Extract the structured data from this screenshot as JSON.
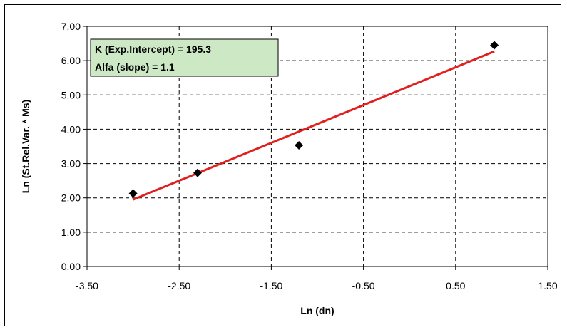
{
  "chart_data": {
    "type": "scatter",
    "xlabel": "Ln (dn)",
    "ylabel": "Ln (St.Rel.Var. * Ms)",
    "xlim": [
      -3.5,
      1.5
    ],
    "ylim": [
      0,
      7
    ],
    "x_ticks": [
      -3.5,
      -2.5,
      -1.5,
      -0.5,
      0.5,
      1.5
    ],
    "x_tick_labels": [
      "-3.50",
      "-2.50",
      "-1.50",
      "-0.50",
      "0.50",
      "1.50"
    ],
    "y_ticks": [
      0,
      1,
      2,
      3,
      4,
      5,
      6,
      7
    ],
    "y_tick_labels": [
      "0.00",
      "1.00",
      "2.00",
      "3.00",
      "4.00",
      "5.00",
      "6.00",
      "7.00"
    ],
    "grid": true,
    "series": [
      {
        "marker": "diamond",
        "color": "#000000",
        "x": [
          -3.0,
          -2.3,
          -1.2,
          0.92
        ],
        "y": [
          2.13,
          2.73,
          3.53,
          6.45
        ]
      }
    ],
    "trendline": {
      "color": "#e0201e",
      "x": [
        -3.0,
        0.92
      ],
      "y": [
        1.95,
        6.27
      ]
    },
    "annotation": {
      "lines": [
        "K (Exp.Intercept) = 195.3",
        "Alfa (slope) = 1.1"
      ],
      "background": "#cce8c4"
    }
  }
}
